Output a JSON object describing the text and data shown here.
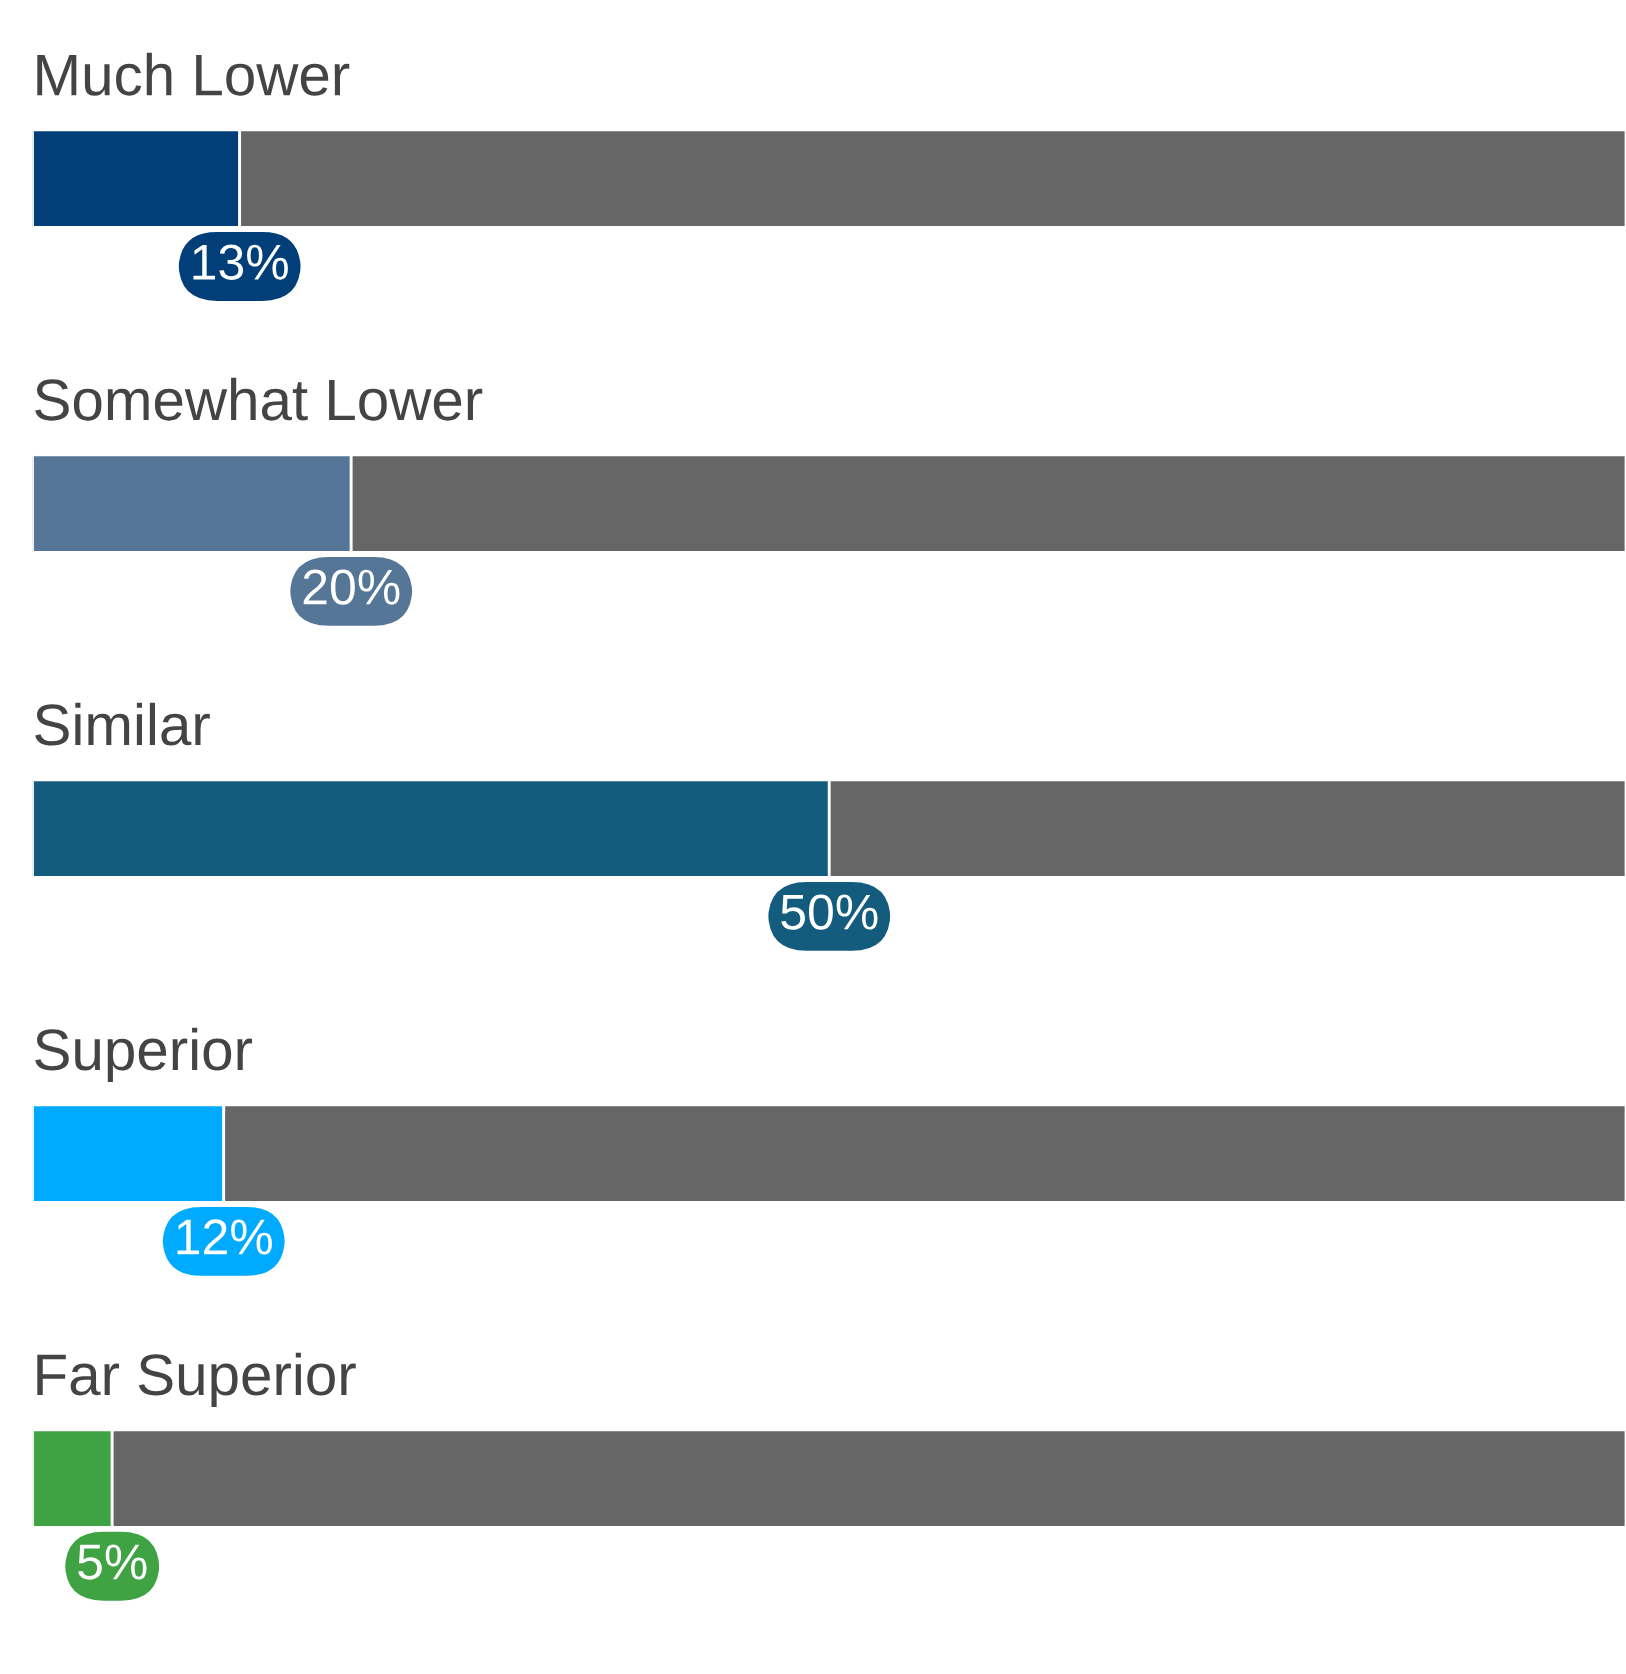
{
  "chart_data": {
    "type": "bar",
    "orientation": "horizontal",
    "stacked": true,
    "categories": [
      "Much Lower",
      "Somewhat Lower",
      "Similar",
      "Superior",
      "Far Superior"
    ],
    "series": [
      {
        "colors": [
          "#023f78",
          "#557696",
          "#145c7d",
          "#00aaff",
          "#3fa243"
        ],
        "values": [
          13,
          20,
          50,
          12,
          5
        ],
        "value_labels": [
          "13%",
          "20%",
          "50%",
          "12%",
          "5%"
        ]
      },
      {
        "color": "#666666",
        "values": [
          87,
          80,
          50,
          88,
          95
        ]
      }
    ]
  }
}
